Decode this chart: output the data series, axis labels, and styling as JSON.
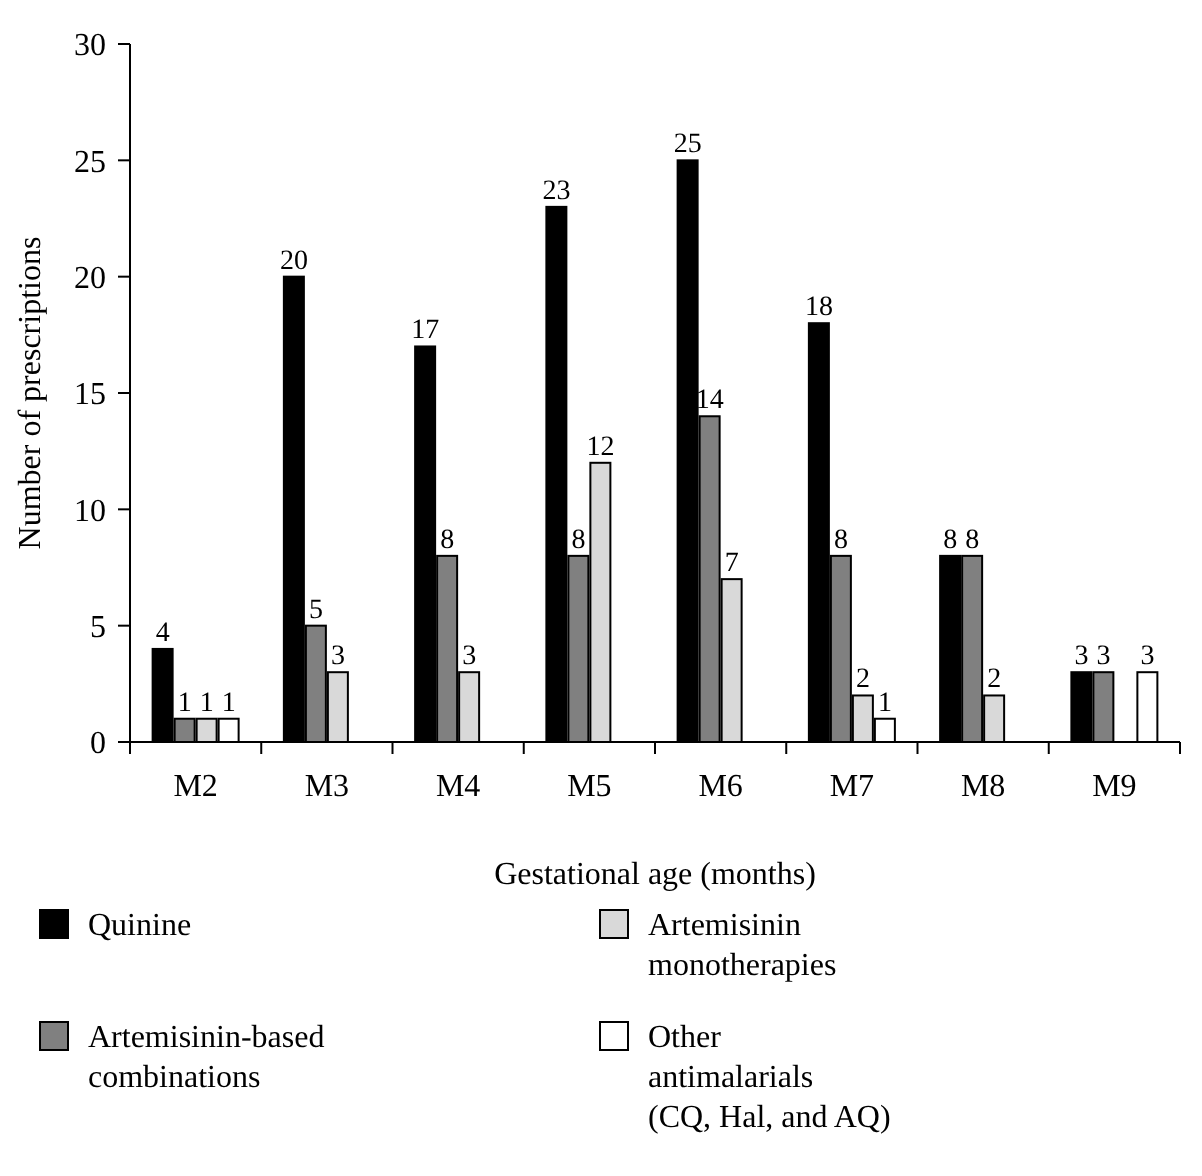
{
  "chart_data": {
    "type": "bar",
    "xlabel": "Gestational age (months)",
    "ylabel": "Number of prescriptions",
    "categories": [
      "M2",
      "M3",
      "M4",
      "M5",
      "M6",
      "M7",
      "M8",
      "M9"
    ],
    "series": [
      {
        "name": "Quinine",
        "color": "#000000",
        "values": [
          4,
          20,
          17,
          23,
          25,
          18,
          8,
          3
        ],
        "value_labels": [
          "4",
          "20",
          "17",
          "23",
          "25",
          "18",
          "8",
          "3"
        ]
      },
      {
        "name": "Artemisinin-based combinations",
        "color": "#808080",
        "values": [
          1,
          5,
          8,
          8,
          14,
          8,
          8,
          3
        ],
        "value_labels": [
          "1",
          "5",
          "8",
          "8",
          "14",
          "8",
          "8",
          "3"
        ]
      },
      {
        "name": "Artemisinin monotherapies",
        "color": "#d9d9d9",
        "values": [
          1,
          3,
          3,
          12,
          7,
          2,
          2,
          0
        ],
        "value_labels": [
          "1",
          "3",
          "3",
          "12",
          "7",
          "2",
          "2",
          null
        ]
      },
      {
        "name": "Other antimalarials (CQ, Hal, and AQ)",
        "color": "#ffffff",
        "values": [
          1,
          0,
          0,
          0,
          0,
          1,
          0,
          3
        ],
        "value_labels": [
          "1",
          null,
          null,
          null,
          null,
          "1",
          null,
          "3"
        ]
      }
    ],
    "ylim": [
      0,
      30
    ],
    "yticks": [
      0,
      5,
      10,
      15,
      20,
      25,
      30
    ],
    "grid": false,
    "legend": "bottom"
  }
}
